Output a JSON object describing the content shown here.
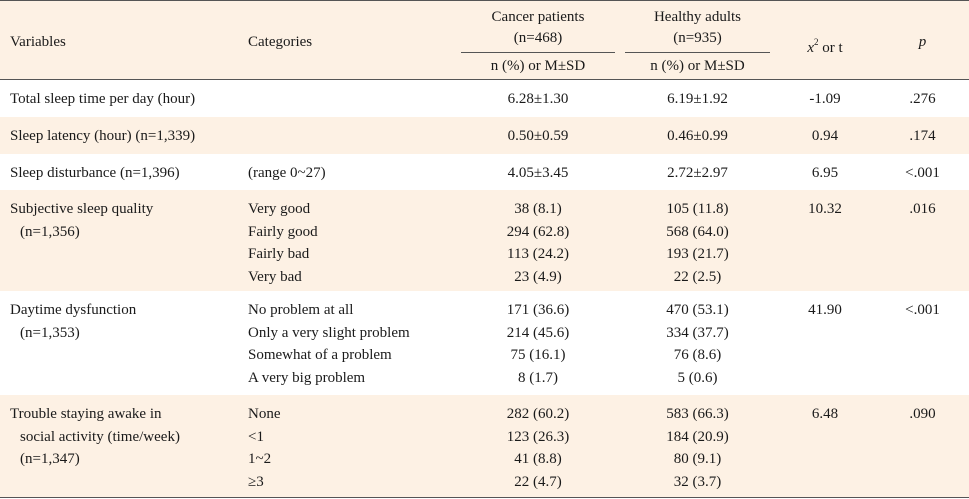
{
  "header": {
    "variables": "Variables",
    "categories": "Categories",
    "cancer_title": "Cancer patients",
    "cancer_n": "(n=468)",
    "cancer_sub": "n (%) or M±SD",
    "healthy_title": "Healthy adults",
    "healthy_n": "(n=935)",
    "healthy_sub": "n (%) or M±SD",
    "stat_x": "x",
    "stat_sup": "2",
    "stat_rest": " or t",
    "p": "p"
  },
  "rows": [
    {
      "variable": [
        "Total sleep time per day (hour)"
      ],
      "categories": [
        ""
      ],
      "cancer": [
        "6.28±1.30"
      ],
      "healthy": [
        "6.19±1.92"
      ],
      "stat": "-1.09",
      "p": ".276"
    },
    {
      "variable": [
        "Sleep latency (hour) (n=1,339)"
      ],
      "categories": [
        ""
      ],
      "cancer": [
        "0.50±0.59"
      ],
      "healthy": [
        "0.46±0.99"
      ],
      "stat": "0.94",
      "p": ".174"
    },
    {
      "variable": [
        "Sleep disturbance (n=1,396)"
      ],
      "categories": [
        "(range 0~27)"
      ],
      "cancer": [
        "4.05±3.45"
      ],
      "healthy": [
        "2.72±2.97"
      ],
      "stat": "6.95",
      "p": "<.001"
    },
    {
      "variable": [
        "Subjective sleep quality",
        "(n=1,356)"
      ],
      "categories": [
        "Very good",
        "Fairly good",
        "Fairly bad",
        "Very bad"
      ],
      "cancer": [
        "38 (8.1)",
        "294 (62.8)",
        "113 (24.2)",
        "23 (4.9)"
      ],
      "healthy": [
        "105 (11.8)",
        "568 (64.0)",
        "193 (21.7)",
        "22 (2.5)"
      ],
      "stat": "10.32",
      "p": ".016"
    },
    {
      "variable": [
        "Daytime dysfunction",
        "(n=1,353)"
      ],
      "categories": [
        "No problem at all",
        "Only a very slight problem",
        "Somewhat of a problem",
        "A very big problem"
      ],
      "cancer": [
        "171 (36.6)",
        "214 (45.6)",
        "75 (16.1)",
        "8 (1.7)"
      ],
      "healthy": [
        "470 (53.1)",
        "334 (37.7)",
        "76 (8.6)",
        "5 (0.6)"
      ],
      "stat": "41.90",
      "p": "<.001"
    },
    {
      "variable": [
        "Trouble staying awake in",
        "social activity (time/week)",
        "(n=1,347)"
      ],
      "categories": [
        "None",
        "<1",
        "1~2",
        "≥3"
      ],
      "cancer": [
        "282 (60.2)",
        "123 (26.3)",
        "41 (8.8)",
        "22 (4.7)"
      ],
      "healthy": [
        "583 (66.3)",
        "184 (20.9)",
        "80 (9.1)",
        "32 (3.7)"
      ],
      "stat": "6.48",
      "p": ".090"
    }
  ]
}
